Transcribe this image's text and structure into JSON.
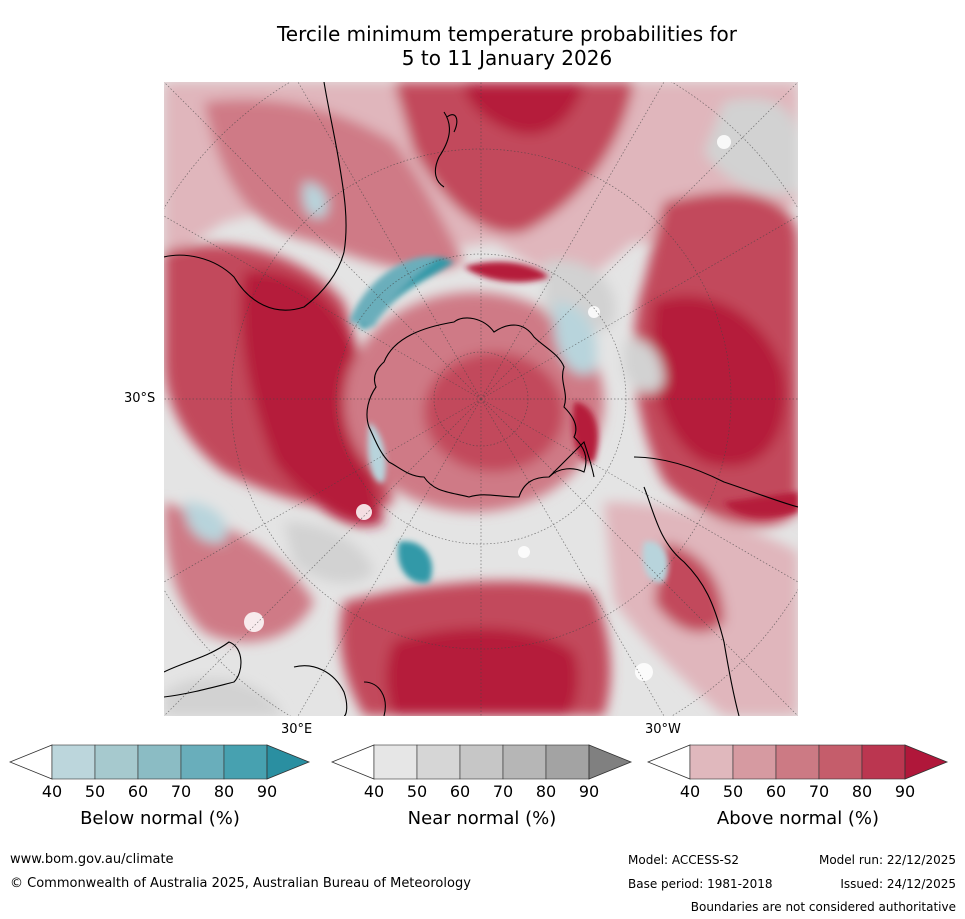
{
  "title": {
    "line1": "Tercile minimum temperature probabilities for",
    "line2": "5 to 11 January 2026"
  },
  "map": {
    "projection": "south-polar-stereographic",
    "lat_label": "30°S",
    "lon_labels": {
      "east": "30°E",
      "west": "30°W"
    },
    "colors": {
      "ocean_bg": "#e4e4e4",
      "above_light": "#e0b6bc",
      "above_mid": "#cf7a86",
      "above_strong": "#c2485c",
      "above_max": "#b51e3a",
      "near": "#d2d2d2",
      "near_dark": "#a0a0a0",
      "below_light": "#b8d4dc",
      "below_mid": "#6aaebb",
      "below_strong": "#3399a8",
      "coast": "#000000"
    }
  },
  "colorbars": [
    {
      "label": "Below normal (%)",
      "ticks": [
        "40",
        "50",
        "60",
        "70",
        "80",
        "90"
      ],
      "colors": [
        "#ffffff",
        "#bcd6dc",
        "#a6c9ce",
        "#8bbcc4",
        "#69aebb",
        "#47a1b0",
        "#2a8fa1"
      ]
    },
    {
      "label": "Near normal (%)",
      "ticks": [
        "40",
        "50",
        "60",
        "70",
        "80",
        "90"
      ],
      "colors": [
        "#ffffff",
        "#e6e6e6",
        "#d6d6d6",
        "#c6c6c6",
        "#b6b6b6",
        "#a3a3a3",
        "#808080"
      ]
    },
    {
      "label": "Above normal (%)",
      "ticks": [
        "40",
        "50",
        "60",
        "70",
        "80",
        "90"
      ],
      "colors": [
        "#ffffff",
        "#e0b8bd",
        "#d69aa1",
        "#cc7a84",
        "#c55d6b",
        "#bb3650",
        "#b0173a"
      ]
    }
  ],
  "footer": {
    "website": "www.bom.gov.au/climate",
    "copyright": "© Commonwealth of Australia 2025, Australian Bureau of Meteorology",
    "model": "Model: ACCESS-S2",
    "model_run": "Model run: 22/12/2025",
    "base_period": "Base period: 1981-2018",
    "issued": "Issued: 24/12/2025",
    "disclaimer": "Boundaries are not considered authoritative"
  }
}
